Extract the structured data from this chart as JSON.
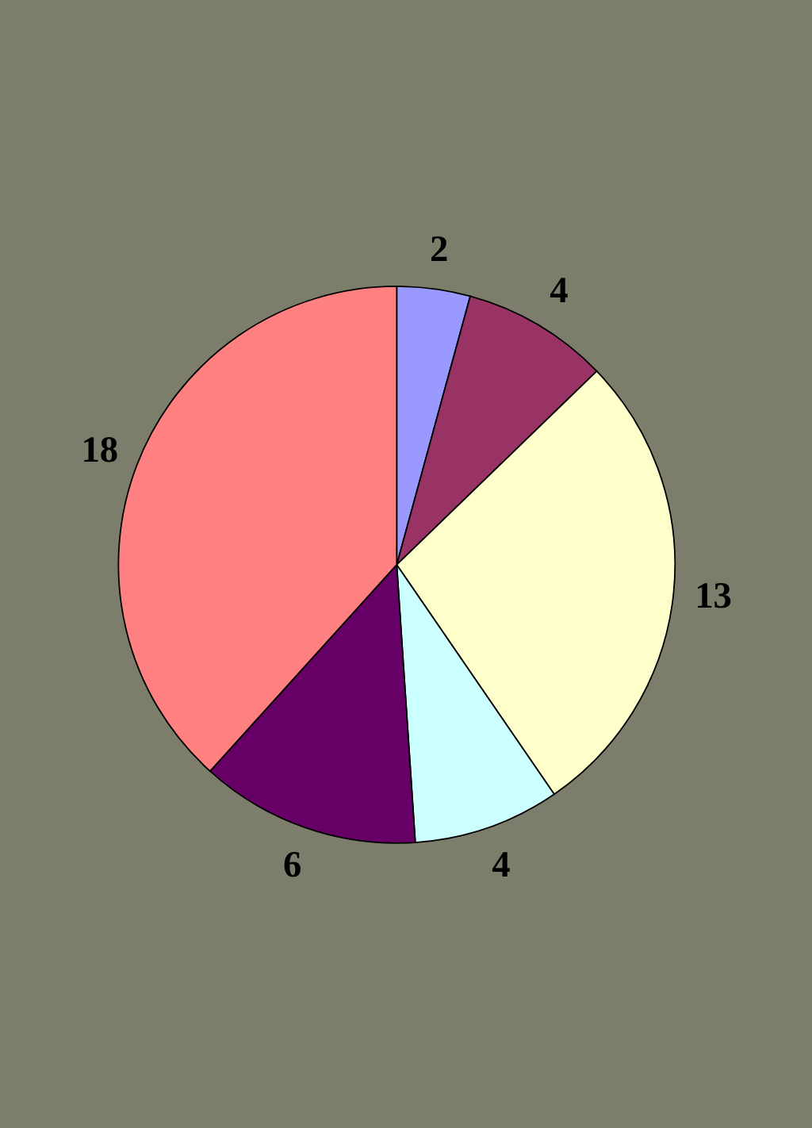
{
  "chart_data": {
    "type": "pie",
    "categories": [
      null,
      null,
      null,
      null,
      null,
      null
    ],
    "values": [
      2,
      4,
      13,
      4,
      6,
      18
    ],
    "colors": [
      "#9999ff",
      "#993366",
      "#ffffcc",
      "#ccffff",
      "#660066",
      "#ff8080"
    ],
    "data_labels": true
  }
}
